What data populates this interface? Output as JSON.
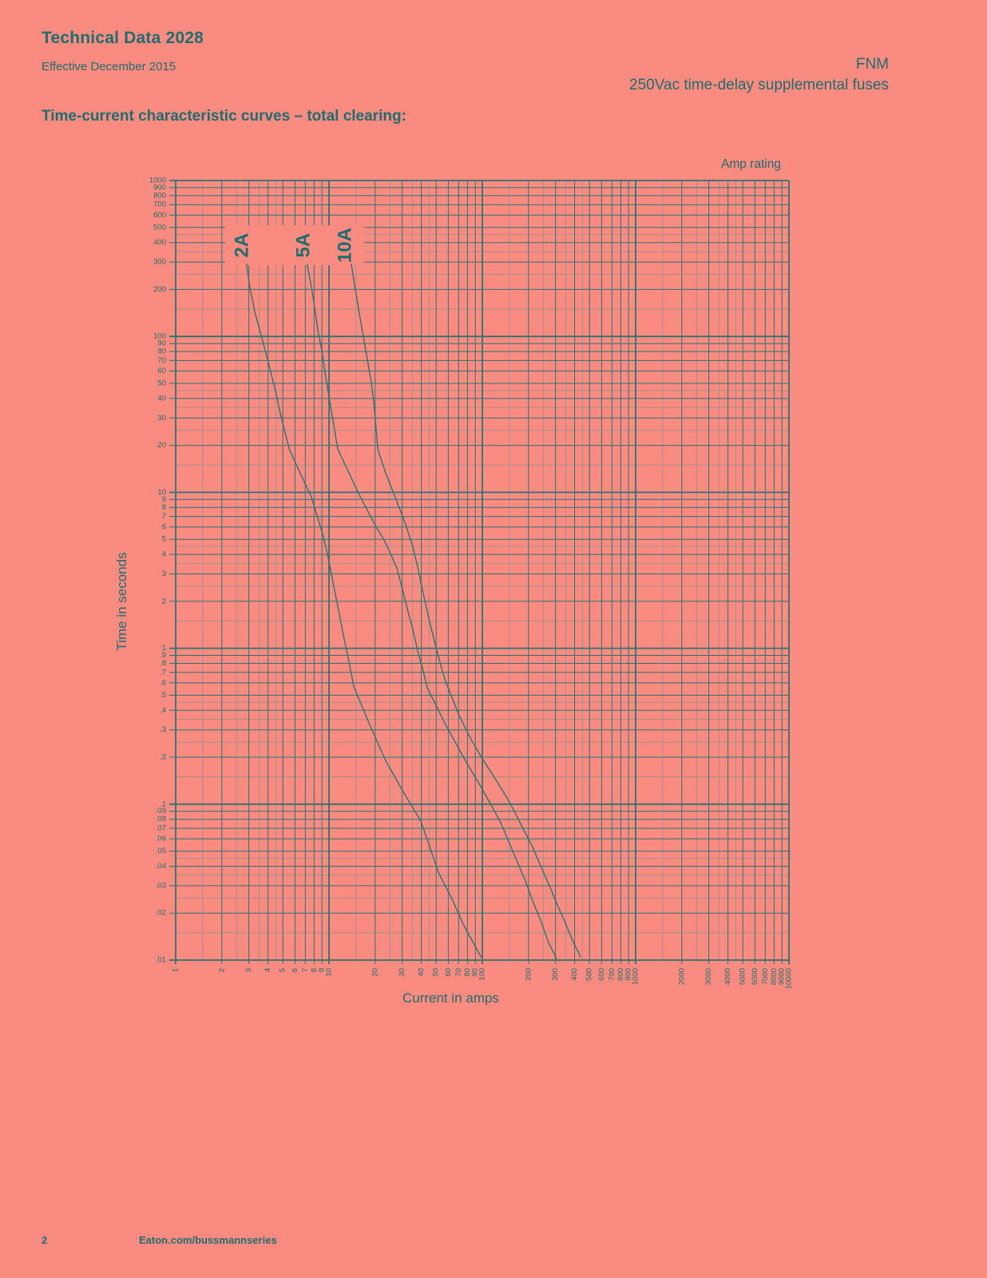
{
  "header": {
    "doc_title": "Technical Data 2028",
    "effective": "Effective December 2015",
    "product": "FNM",
    "product_sub": "250Vac time-delay supplemental fuses"
  },
  "section_title": "Time-current characteristic curves – total clearing:",
  "footer": {
    "page_number": "2",
    "site": "Eaton.com/bussmannseries"
  },
  "colors": {
    "background": "#f98b81",
    "ink": "#1d6e6d",
    "grid": "#2a7472",
    "grid_minor": "#a8908a"
  },
  "chart_data": {
    "type": "line",
    "title": "Time-current characteristic curves – total clearing",
    "xlabel": "Current in amps",
    "ylabel": "Time in seconds",
    "legend_label": "Amp rating",
    "x_scale": "log",
    "y_scale": "log",
    "xlim": [
      1,
      10000
    ],
    "ylim": [
      0.01,
      1000
    ],
    "grid": true,
    "x_ticks": [
      1,
      2,
      3,
      4,
      5,
      6,
      7,
      8,
      9,
      10,
      20,
      30,
      40,
      50,
      60,
      70,
      80,
      90,
      100,
      200,
      300,
      400,
      500,
      600,
      700,
      800,
      900,
      1000,
      2000,
      3000,
      4000,
      5000,
      6000,
      7000,
      8000,
      9000,
      10000
    ],
    "x_tick_labels": [
      "1",
      "2",
      "3",
      "4",
      "5",
      "6",
      "7",
      "8",
      "9",
      "10",
      "20",
      "30",
      "40",
      "50",
      "60",
      "70",
      "80",
      "90",
      "100",
      "200",
      "300",
      "400",
      "500",
      "600",
      "700",
      "800",
      "900",
      "1000",
      "2000",
      "3000",
      "4000",
      "5000",
      "6000",
      "7000",
      "8000",
      "9000",
      "10000"
    ],
    "y_ticks": [
      1000,
      900,
      800,
      700,
      600,
      500,
      400,
      300,
      200,
      100,
      90,
      80,
      70,
      60,
      50,
      40,
      30,
      20,
      10,
      9,
      8,
      7,
      6,
      5,
      4,
      3,
      2,
      1,
      0.9,
      0.8,
      0.7,
      0.6,
      0.5,
      0.4,
      0.3,
      0.2,
      0.1,
      0.09,
      0.08,
      0.07,
      0.06,
      0.05,
      0.04,
      0.03,
      0.02,
      0.01
    ],
    "y_tick_labels": [
      "1000",
      "900",
      "800",
      "700",
      "600",
      "500",
      "400",
      "300",
      "200",
      "100",
      "90",
      "80",
      "70",
      "60",
      "50",
      "40",
      "30",
      "20",
      "10",
      "9",
      "8",
      "7",
      "6",
      "5",
      "4",
      "3",
      "2",
      "1",
      ".9",
      ".8",
      ".7",
      ".6",
      ".5",
      ".4",
      ".3",
      ".2",
      ".1",
      ".09",
      ".08",
      ".07",
      ".06",
      ".05",
      ".04",
      ".03",
      ".02",
      ".01"
    ],
    "label_band": {
      "amps": [
        2.1,
        16.9
      ],
      "seconds": [
        286,
        516
      ]
    },
    "series": [
      {
        "name": "2A",
        "label_amps": 2.7,
        "points": [
          [
            2.9,
            290
          ],
          [
            3.05,
            205
          ],
          [
            3.3,
            140
          ],
          [
            3.65,
            98
          ],
          [
            4.05,
            66
          ],
          [
            4.5,
            44
          ],
          [
            4.75,
            34
          ],
          [
            5.5,
            19
          ],
          [
            6.6,
            12.8
          ],
          [
            7.7,
            9.3
          ],
          [
            8.45,
            6.8
          ],
          [
            9.2,
            5.2
          ],
          [
            10,
            3.6
          ],
          [
            10.6,
            2.65
          ],
          [
            11.3,
            1.95
          ],
          [
            12.4,
            1.22
          ],
          [
            13.6,
            0.79
          ],
          [
            14.5,
            0.57
          ],
          [
            17.8,
            0.35
          ],
          [
            23.4,
            0.19
          ],
          [
            30.5,
            0.12
          ],
          [
            39.7,
            0.078
          ],
          [
            52,
            0.036
          ],
          [
            63,
            0.025
          ],
          [
            75,
            0.017
          ],
          [
            98,
            0.0105
          ]
        ]
      },
      {
        "name": "5A",
        "label_amps": 6.8,
        "points": [
          [
            7.2,
            290
          ],
          [
            7.7,
            205
          ],
          [
            8.0,
            161
          ],
          [
            8.45,
            110
          ],
          [
            9.0,
            80
          ],
          [
            9.5,
            56
          ],
          [
            10,
            41
          ],
          [
            11.4,
            19
          ],
          [
            13.5,
            13.3
          ],
          [
            15.4,
            10.1
          ],
          [
            17.8,
            7.65
          ],
          [
            20.5,
            5.9
          ],
          [
            22.6,
            5.05
          ],
          [
            24.9,
            4.15
          ],
          [
            27.7,
            3.27
          ],
          [
            29.8,
            2.5
          ],
          [
            32.4,
            1.8
          ],
          [
            35.2,
            1.32
          ],
          [
            37.8,
            0.97
          ],
          [
            41.2,
            0.71
          ],
          [
            43.7,
            0.56
          ],
          [
            57,
            0.33
          ],
          [
            66.5,
            0.25
          ],
          [
            77.6,
            0.19
          ],
          [
            95,
            0.136
          ],
          [
            111,
            0.104
          ],
          [
            132,
            0.076
          ],
          [
            148,
            0.058
          ],
          [
            167,
            0.044
          ],
          [
            189,
            0.033
          ],
          [
            213,
            0.024
          ],
          [
            240,
            0.018
          ],
          [
            270,
            0.013
          ],
          [
            305,
            0.0102
          ]
        ]
      },
      {
        "name": "10A",
        "label_amps": 12.7,
        "points": [
          [
            14,
            290
          ],
          [
            14.5,
            230
          ],
          [
            15.2,
            176
          ],
          [
            15.8,
            139
          ],
          [
            16.7,
            101
          ],
          [
            17.8,
            71
          ],
          [
            18.9,
            50
          ],
          [
            19.6,
            38
          ],
          [
            20.8,
            19
          ],
          [
            23.4,
            13.3
          ],
          [
            26.4,
            9.9
          ],
          [
            31.3,
            6.4
          ],
          [
            35.2,
            4.5
          ],
          [
            37.8,
            3.36
          ],
          [
            40.2,
            2.5
          ],
          [
            44.8,
            1.55
          ],
          [
            50.4,
            0.97
          ],
          [
            57,
            0.63
          ],
          [
            70.6,
            0.37
          ],
          [
            84.5,
            0.26
          ],
          [
            101,
            0.193
          ],
          [
            118,
            0.152
          ],
          [
            140,
            0.116
          ],
          [
            160,
            0.092
          ],
          [
            180,
            0.073
          ],
          [
            213,
            0.053
          ],
          [
            249,
            0.037
          ],
          [
            280,
            0.0285
          ],
          [
            309,
            0.0225
          ],
          [
            344,
            0.0178
          ],
          [
            387,
            0.0134
          ],
          [
            437,
            0.0105
          ]
        ]
      }
    ]
  }
}
